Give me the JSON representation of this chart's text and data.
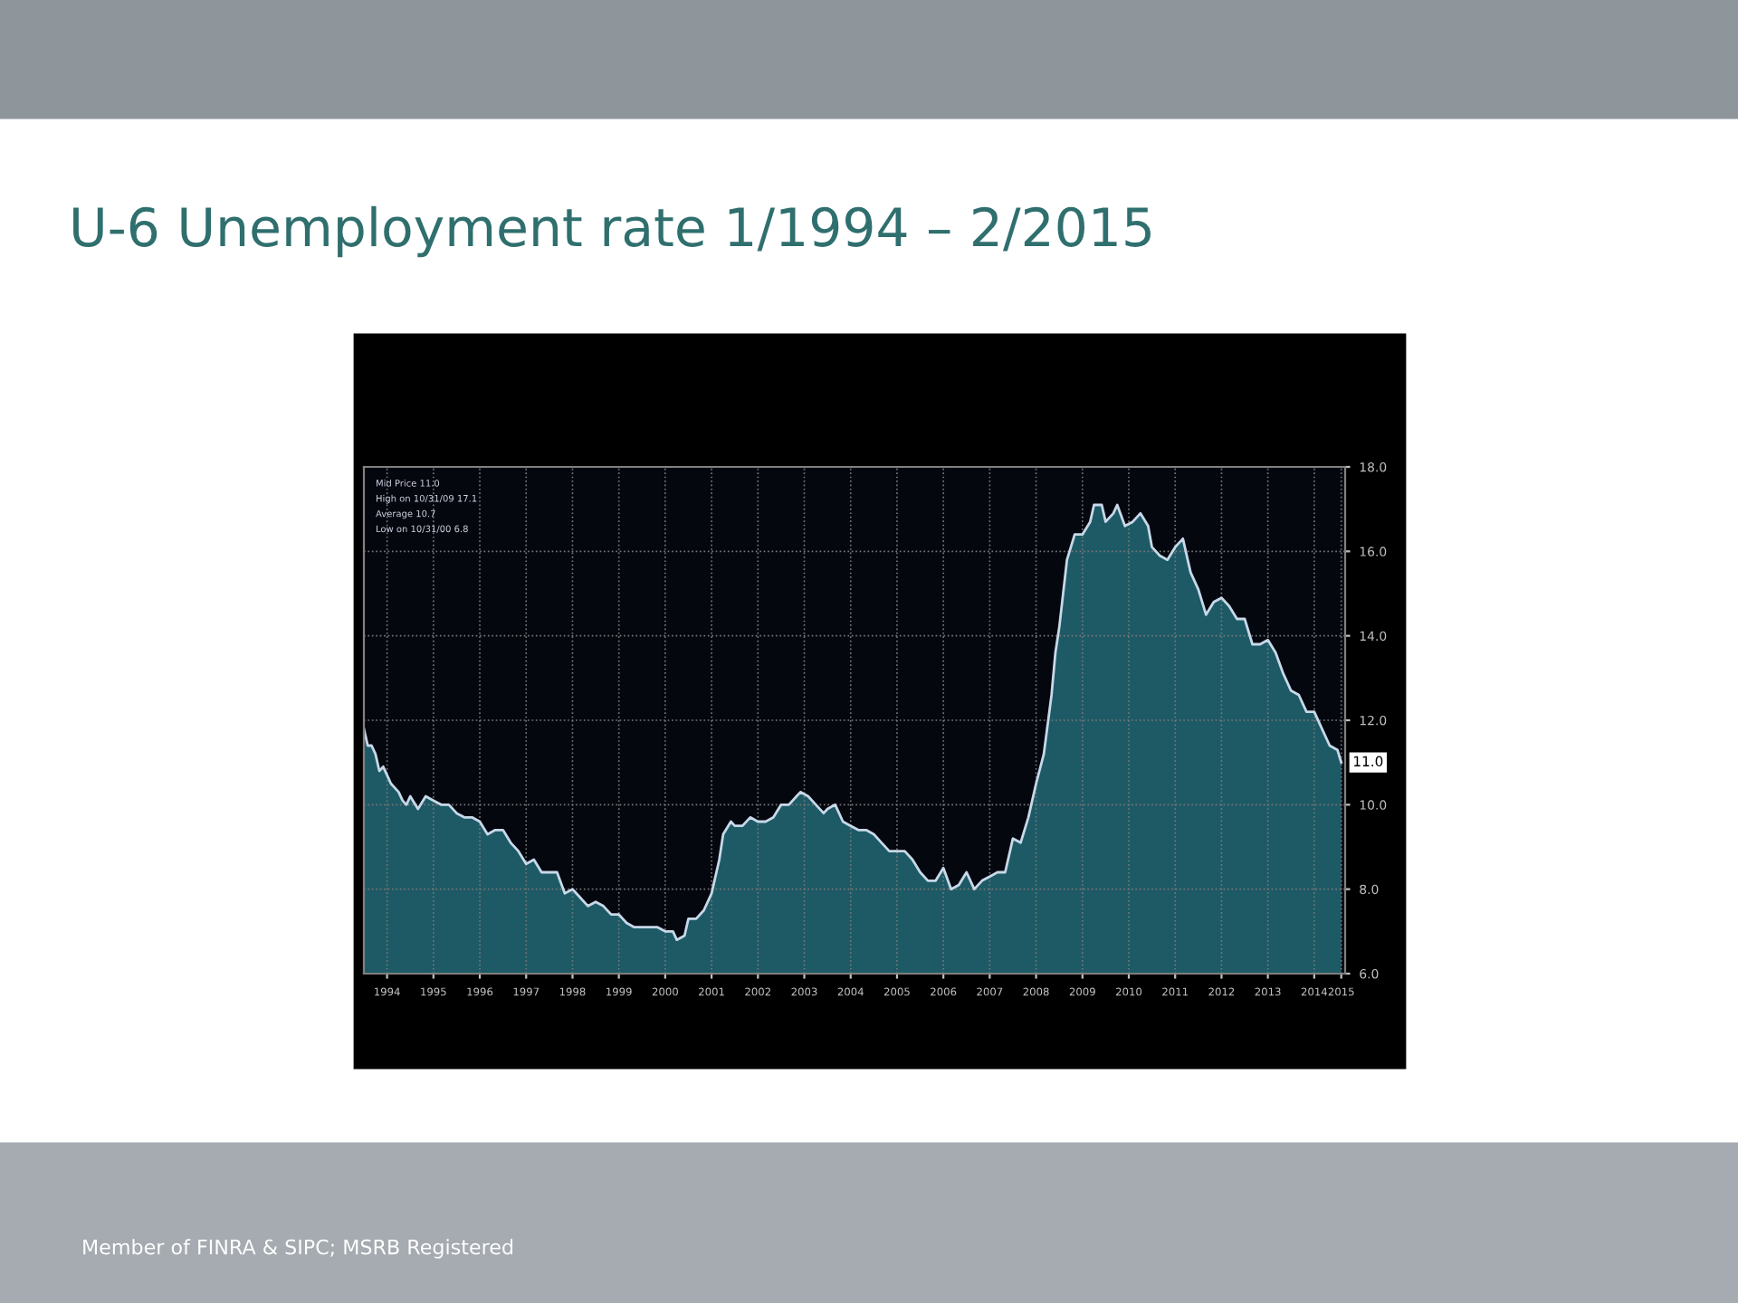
{
  "chart_data": {
    "type": "area",
    "title": "U-6 Unemployment rate 1/1994 – 2/2015",
    "x": [
      "1994-01",
      "1994-02",
      "1994-03",
      "1994-04",
      "1994-05",
      "1994-06",
      "1994-07",
      "1994-08",
      "1994-09",
      "1994-10",
      "1994-11",
      "1994-12",
      "1995-01",
      "1995-03",
      "1995-05",
      "1995-07",
      "1995-09",
      "1995-11",
      "1996-01",
      "1996-03",
      "1996-05",
      "1996-07",
      "1996-09",
      "1996-11",
      "1997-01",
      "1997-03",
      "1997-05",
      "1997-07",
      "1997-09",
      "1997-11",
      "1998-01",
      "1998-03",
      "1998-05",
      "1998-07",
      "1998-09",
      "1998-11",
      "1999-01",
      "1999-03",
      "1999-05",
      "1999-07",
      "1999-09",
      "1999-11",
      "2000-01",
      "2000-03",
      "2000-05",
      "2000-07",
      "2000-09",
      "2000-10",
      "2000-12",
      "2001-01",
      "2001-03",
      "2001-05",
      "2001-07",
      "2001-09",
      "2001-10",
      "2001-12",
      "2002-01",
      "2002-03",
      "2002-05",
      "2002-07",
      "2002-09",
      "2002-11",
      "2003-01",
      "2003-03",
      "2003-05",
      "2003-06",
      "2003-08",
      "2003-10",
      "2003-12",
      "2004-01",
      "2004-03",
      "2004-05",
      "2004-07",
      "2004-09",
      "2004-11",
      "2005-01",
      "2005-03",
      "2005-05",
      "2005-07",
      "2005-09",
      "2005-11",
      "2006-01",
      "2006-03",
      "2006-05",
      "2006-07",
      "2006-09",
      "2006-11",
      "2007-01",
      "2007-03",
      "2007-05",
      "2007-07",
      "2007-09",
      "2007-11",
      "2008-01",
      "2008-03",
      "2008-05",
      "2008-07",
      "2008-09",
      "2008-11",
      "2008-12",
      "2009-01",
      "2009-03",
      "2009-05",
      "2009-07",
      "2009-09",
      "2009-10",
      "2009-12",
      "2010-01",
      "2010-03",
      "2010-04",
      "2010-06",
      "2010-08",
      "2010-10",
      "2010-12",
      "2011-01",
      "2011-03",
      "2011-05",
      "2011-07",
      "2011-09",
      "2011-11",
      "2012-01",
      "2012-03",
      "2012-05",
      "2012-07",
      "2012-09",
      "2012-11",
      "2013-01",
      "2013-03",
      "2013-05",
      "2013-07",
      "2013-09",
      "2013-11",
      "2014-01",
      "2014-03",
      "2014-05",
      "2014-07",
      "2014-09",
      "2014-11",
      "2015-01",
      "2015-02"
    ],
    "series": [
      {
        "color": "#1d5a66",
        "values": [
          11.8,
          11.4,
          11.4,
          11.2,
          10.8,
          10.9,
          10.7,
          10.5,
          10.4,
          10.3,
          10.1,
          10.0,
          10.2,
          9.9,
          10.2,
          10.1,
          10.0,
          10.0,
          9.8,
          9.7,
          9.7,
          9.6,
          9.3,
          9.4,
          9.4,
          9.1,
          8.9,
          8.6,
          8.7,
          8.4,
          8.4,
          8.4,
          7.9,
          8.0,
          7.8,
          7.6,
          7.7,
          7.6,
          7.4,
          7.4,
          7.2,
          7.1,
          7.1,
          7.1,
          7.1,
          7.0,
          7.0,
          6.8,
          6.9,
          7.3,
          7.3,
          7.5,
          7.9,
          8.7,
          9.3,
          9.6,
          9.5,
          9.5,
          9.7,
          9.6,
          9.6,
          9.7,
          10.0,
          10.0,
          10.2,
          10.3,
          10.2,
          10.0,
          9.8,
          9.9,
          10.0,
          9.6,
          9.5,
          9.4,
          9.4,
          9.3,
          9.1,
          8.9,
          8.9,
          8.9,
          8.7,
          8.4,
          8.2,
          8.2,
          8.5,
          8.0,
          8.1,
          8.4,
          8.0,
          8.2,
          8.3,
          8.4,
          8.4,
          9.2,
          9.1,
          9.7,
          10.5,
          11.2,
          12.6,
          13.6,
          14.2,
          15.8,
          16.4,
          16.4,
          16.7,
          17.1,
          17.1,
          16.7,
          16.9,
          17.1,
          16.6,
          16.7,
          16.9,
          16.6,
          16.1,
          15.9,
          15.8,
          16.1,
          16.3,
          15.5,
          15.1,
          14.5,
          14.8,
          14.9,
          14.7,
          14.4,
          14.4,
          13.8,
          13.8,
          13.9,
          13.6,
          13.1,
          12.7,
          12.6,
          12.2,
          12.2,
          11.8,
          11.4,
          11.3,
          11.0
        ],
        "value_labels": [
          null,
          null,
          null,
          null,
          null,
          null,
          null,
          null,
          null,
          null,
          null,
          null,
          null,
          null,
          null,
          null,
          null,
          null,
          null,
          null,
          null,
          null,
          null,
          null,
          null,
          null,
          null,
          null,
          null,
          null,
          null,
          null,
          null,
          null,
          null,
          null,
          null,
          null,
          null,
          null,
          null,
          null,
          null,
          null,
          null,
          null,
          null,
          null,
          null,
          null,
          null,
          null,
          null,
          null,
          null,
          null,
          null,
          null,
          null,
          null,
          null,
          null,
          null,
          null,
          null,
          null,
          null,
          null,
          null,
          null,
          null,
          null,
          null,
          null,
          null,
          null,
          null,
          null,
          null,
          null,
          null,
          null,
          null,
          null,
          null,
          null,
          null,
          null,
          null,
          null,
          null,
          null,
          null,
          null,
          null,
          null,
          null,
          null,
          null,
          null,
          null,
          null,
          null,
          null,
          null,
          null,
          null,
          null,
          null,
          null,
          null,
          null,
          null,
          null,
          null,
          null,
          null,
          null,
          null,
          null,
          null,
          null,
          null,
          null,
          null,
          null,
          null,
          null,
          null,
          null,
          null,
          null,
          null,
          null,
          null,
          null,
          null,
          null,
          null,
          "11.0"
        ]
      }
    ],
    "xlim": [
      "1994-01",
      "2015-03"
    ],
    "xticks": [
      {
        "value": "1994-07",
        "label": "1994"
      },
      {
        "value": "1995-07",
        "label": "1995"
      },
      {
        "value": "1996-07",
        "label": "1996"
      },
      {
        "value": "1997-07",
        "label": "1997"
      },
      {
        "value": "1998-07",
        "label": "1998"
      },
      {
        "value": "1999-07",
        "label": "1999"
      },
      {
        "value": "2000-07",
        "label": "2000"
      },
      {
        "value": "2001-07",
        "label": "2001"
      },
      {
        "value": "2002-07",
        "label": "2002"
      },
      {
        "value": "2003-07",
        "label": "2003"
      },
      {
        "value": "2004-07",
        "label": "2004"
      },
      {
        "value": "2005-07",
        "label": "2005"
      },
      {
        "value": "2006-07",
        "label": "2006"
      },
      {
        "value": "2007-07",
        "label": "2007"
      },
      {
        "value": "2008-07",
        "label": "2008"
      },
      {
        "value": "2009-07",
        "label": "2009"
      },
      {
        "value": "2010-07",
        "label": "2010"
      },
      {
        "value": "2011-07",
        "label": "2011"
      },
      {
        "value": "2012-07",
        "label": "2012"
      },
      {
        "value": "2013-07",
        "label": "2013"
      },
      {
        "value": "2014-07",
        "label": "2014"
      },
      {
        "value": "2015-02",
        "label": "2015"
      }
    ],
    "ylim": [
      6,
      18
    ],
    "yticks": [
      {
        "value": 6,
        "label": "6.0"
      },
      {
        "value": 8,
        "label": "8.0"
      },
      {
        "value": 10,
        "label": "10.0"
      },
      {
        "value": 12,
        "label": "12.0"
      },
      {
        "value": 14,
        "label": "14.0"
      },
      {
        "value": 16,
        "label": "16.0"
      },
      {
        "value": 18,
        "label": "18.0"
      }
    ],
    "grid": true,
    "annotations": [
      "Mid Price 11.0",
      "High on 10/31/09 17.1",
      "Average 10.7",
      "Low on 10/31/00 6.8",
      "Member of FINRA & SIPC; MSRB Registered"
    ]
  }
}
